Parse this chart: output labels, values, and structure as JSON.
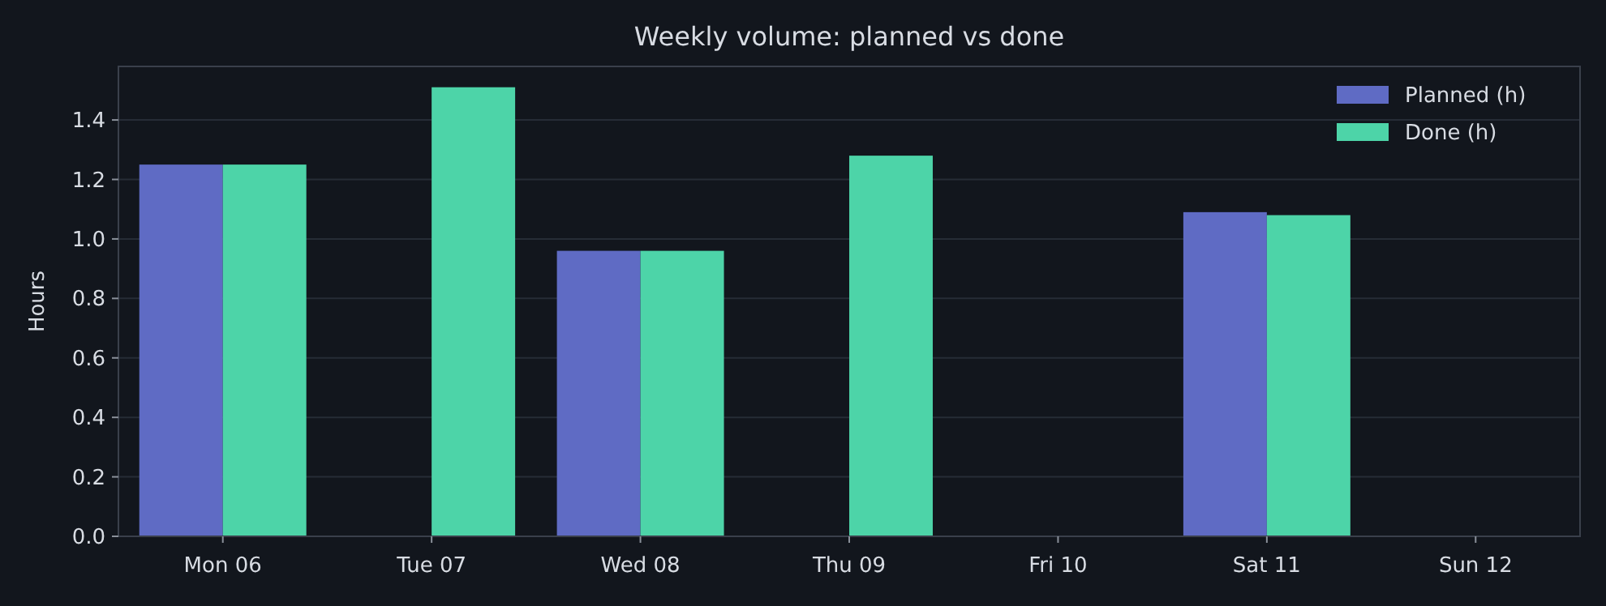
{
  "chart_data": {
    "type": "bar",
    "title": "Weekly volume: planned vs done",
    "ylabel": "Hours",
    "categories": [
      "Mon 06",
      "Tue 07",
      "Wed 08",
      "Thu 09",
      "Fri 10",
      "Sat 11",
      "Sun 12"
    ],
    "series": [
      {
        "name": "Planned (h)",
        "color": "#5f6bc4",
        "values": [
          1.25,
          0,
          0.96,
          0,
          0,
          1.09,
          0
        ]
      },
      {
        "name": "Done (h)",
        "color": "#4dd4a8",
        "values": [
          1.25,
          1.51,
          0.96,
          1.28,
          0,
          1.08,
          0
        ]
      }
    ],
    "ylim": [
      0,
      1.58
    ],
    "yticks": [
      {
        "value": 0,
        "label": "0.0"
      },
      0.2,
      0.4,
      0.6,
      0.8,
      {
        "value": 1,
        "label": "1.0"
      },
      1.2,
      1.4
    ],
    "grid": "y",
    "legend": "top right"
  }
}
